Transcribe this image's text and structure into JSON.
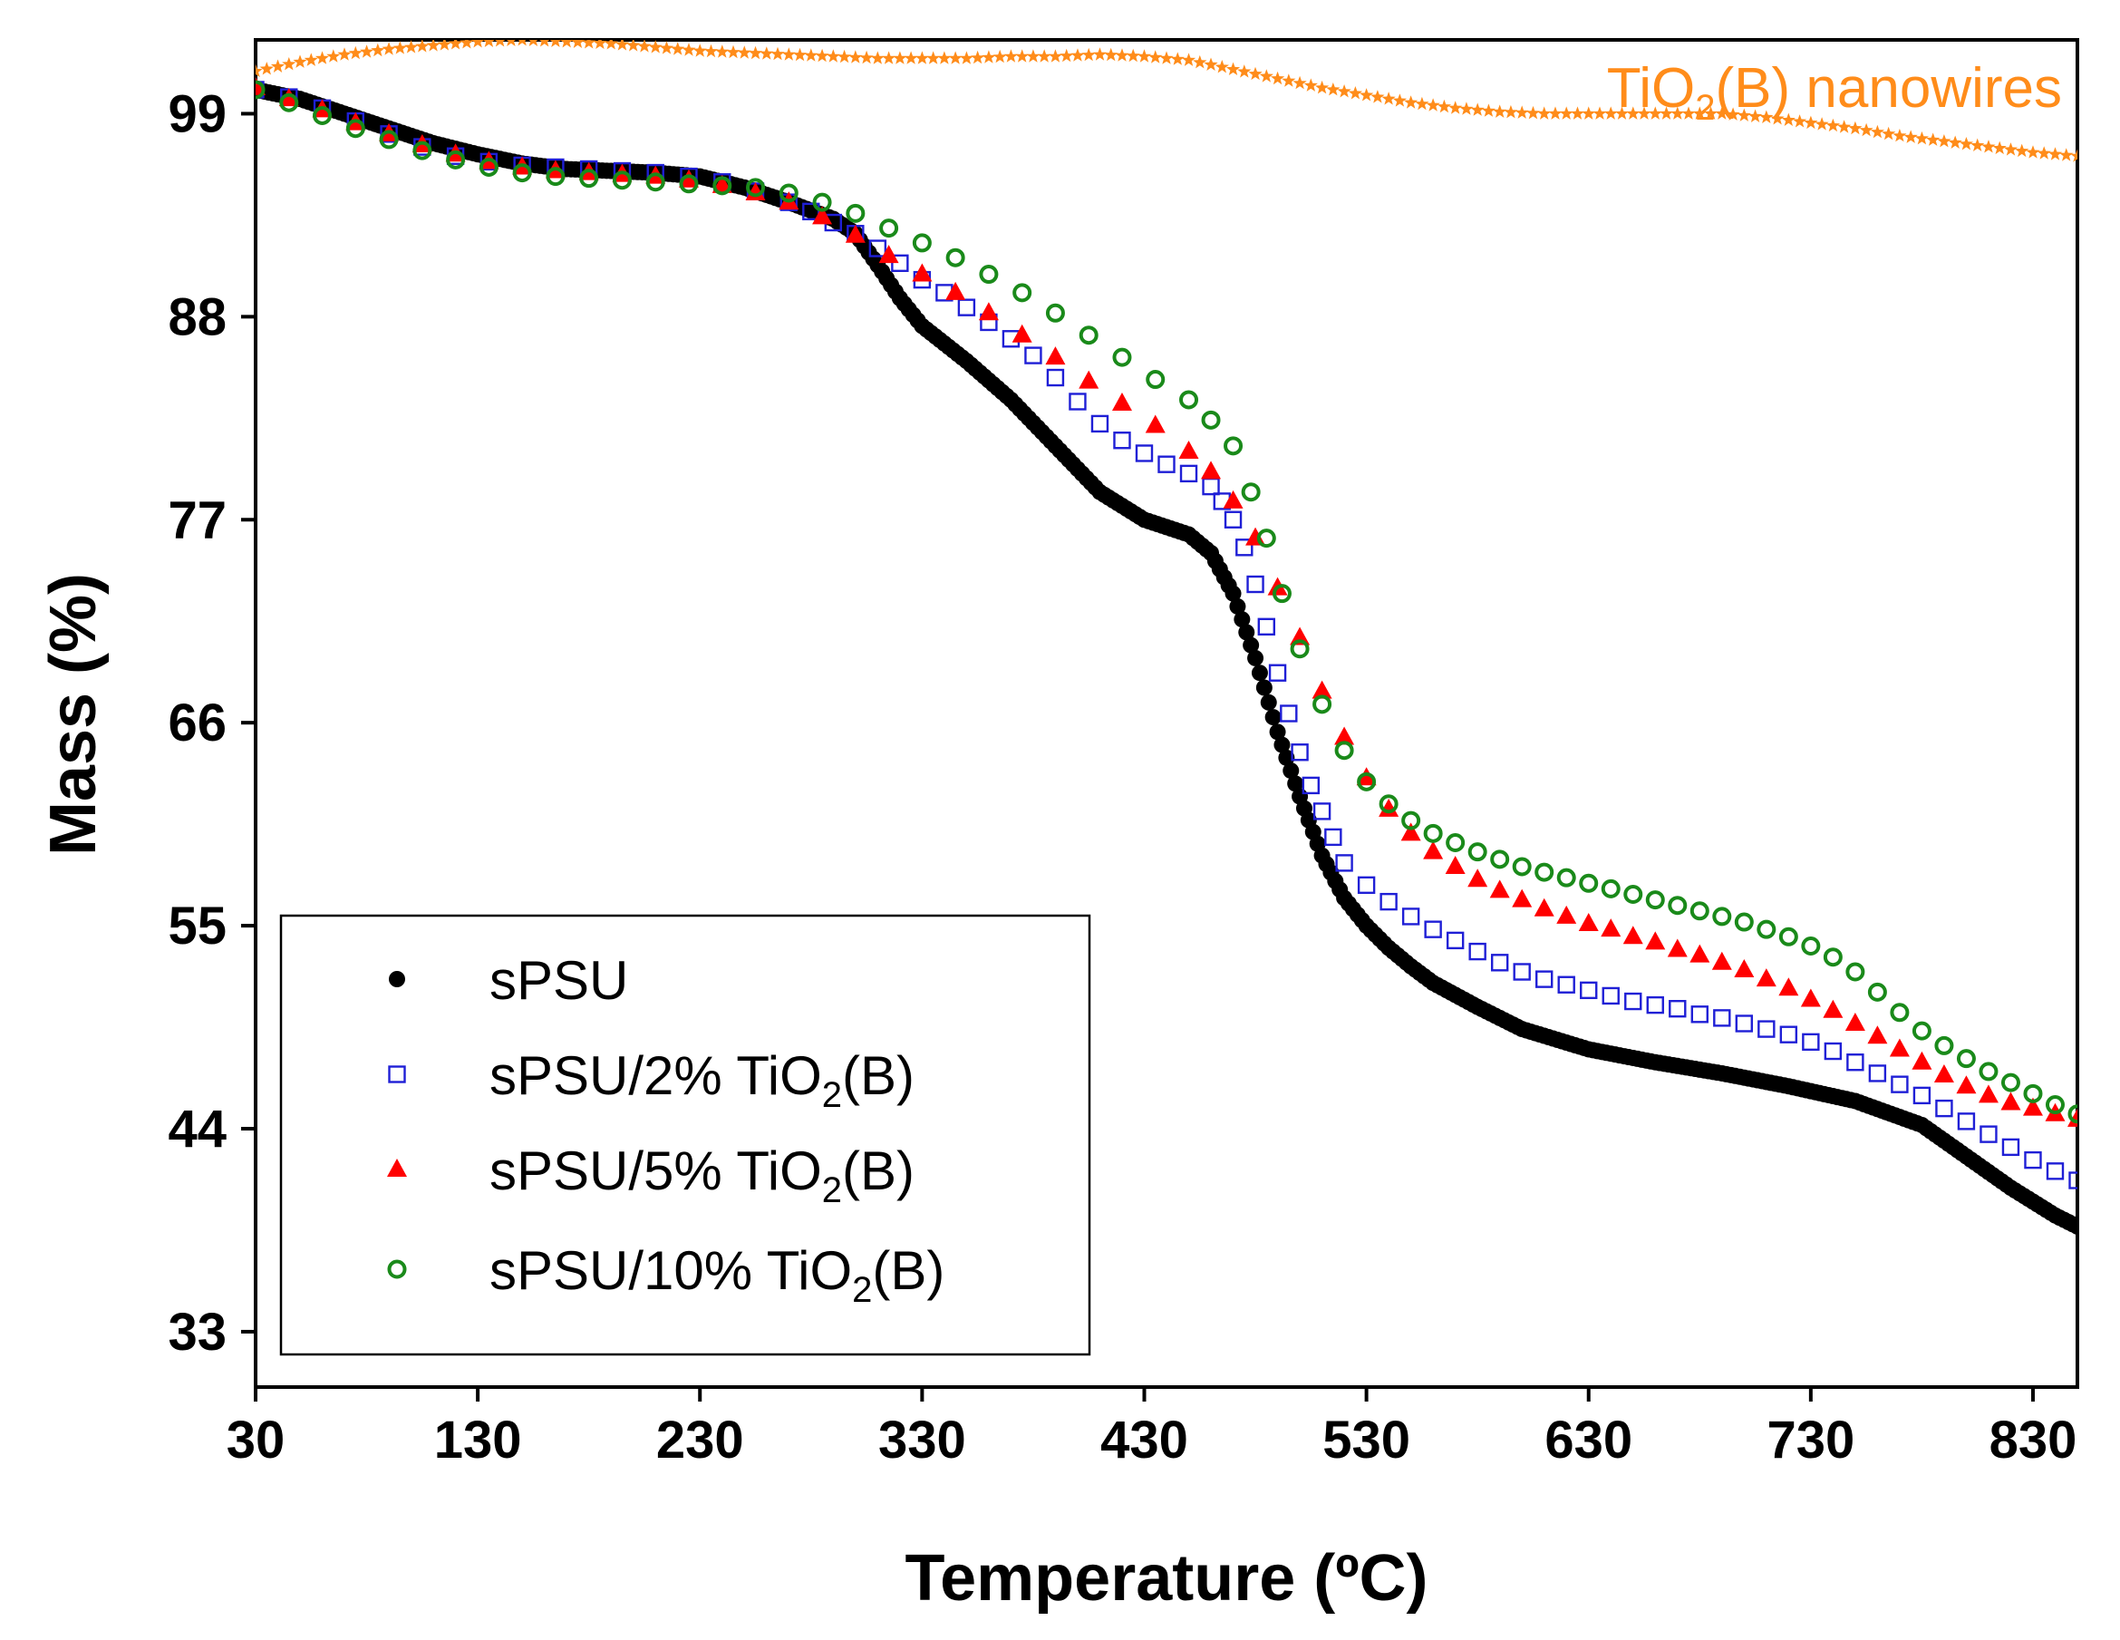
{
  "chart_data": {
    "type": "scatter",
    "title": "",
    "xlabel": "Temperature (ºC)",
    "ylabel": "Mass (%)",
    "xlim": [
      30,
      850
    ],
    "ylim": [
      30,
      103
    ],
    "xticks": [
      30,
      130,
      230,
      330,
      430,
      530,
      630,
      730,
      830
    ],
    "yticks": [
      33,
      44,
      55,
      66,
      77,
      88,
      99
    ],
    "legend_position": "bottom-left",
    "annotation": {
      "prefix": "TiO",
      "subscript": "2",
      "suffix": "(B) nanowires",
      "color": "#ff8c1a"
    },
    "series": [
      {
        "name": "sPSU",
        "legend": {
          "prefix": "sPSU",
          "subscript": "",
          "suffix": ""
        },
        "marker": "dot",
        "color": "#000000",
        "x": [
          30,
          50,
          70,
          90,
          110,
          130,
          150,
          170,
          190,
          210,
          230,
          250,
          270,
          290,
          300,
          310,
          320,
          330,
          350,
          370,
          390,
          410,
          430,
          450,
          460,
          470,
          480,
          490,
          500,
          510,
          520,
          530,
          540,
          550,
          560,
          580,
          600,
          630,
          660,
          690,
          720,
          750,
          780,
          800,
          820,
          840,
          850
        ],
        "y": [
          100.3,
          99.8,
          99.0,
          98.2,
          97.4,
          96.8,
          96.3,
          96.0,
          95.9,
          95.8,
          95.6,
          95.0,
          94.2,
          93.3,
          92.5,
          90.8,
          89.0,
          87.5,
          85.6,
          83.5,
          81.0,
          78.5,
          77.0,
          76.2,
          75.2,
          73.0,
          69.5,
          65.5,
          62.0,
          58.8,
          56.5,
          55.0,
          53.8,
          52.8,
          51.9,
          50.6,
          49.4,
          48.3,
          47.6,
          47.0,
          46.3,
          45.5,
          44.2,
          42.5,
          40.8,
          39.3,
          38.7
        ]
      },
      {
        "name": "sPSU/2% TiO2(B)",
        "legend": {
          "prefix": "sPSU/2% TiO",
          "subscript": "2",
          "suffix": "(B)"
        },
        "marker": "square",
        "color": "#1f1fd6",
        "x": [
          30,
          45,
          60,
          75,
          90,
          105,
          120,
          135,
          150,
          165,
          180,
          195,
          210,
          225,
          240,
          255,
          270,
          280,
          290,
          300,
          310,
          320,
          330,
          340,
          350,
          360,
          370,
          380,
          390,
          400,
          410,
          420,
          430,
          440,
          450,
          460,
          465,
          470,
          475,
          480,
          485,
          490,
          495,
          500,
          505,
          510,
          515,
          520,
          530,
          540,
          550,
          560,
          570,
          580,
          590,
          600,
          610,
          620,
          630,
          640,
          650,
          660,
          670,
          680,
          690,
          700,
          710,
          720,
          730,
          740,
          750,
          760,
          770,
          780,
          790,
          800,
          810,
          820,
          830,
          840,
          850
        ],
        "y": [
          100.3,
          99.9,
          99.3,
          98.6,
          97.9,
          97.2,
          96.7,
          96.4,
          96.2,
          96.1,
          96.0,
          95.9,
          95.8,
          95.6,
          95.3,
          94.8,
          94.2,
          93.7,
          93.1,
          92.5,
          91.7,
          90.9,
          90.0,
          89.3,
          88.5,
          87.7,
          86.8,
          85.9,
          84.7,
          83.4,
          82.2,
          81.3,
          80.6,
          80.0,
          79.5,
          78.8,
          78.0,
          77.0,
          75.5,
          73.5,
          71.2,
          68.7,
          66.5,
          64.4,
          62.6,
          61.2,
          59.8,
          58.4,
          57.2,
          56.3,
          55.5,
          54.8,
          54.2,
          53.6,
          53.0,
          52.5,
          52.1,
          51.8,
          51.5,
          51.2,
          50.9,
          50.7,
          50.5,
          50.2,
          50.0,
          49.7,
          49.4,
          49.1,
          48.7,
          48.2,
          47.6,
          47.0,
          46.4,
          45.8,
          45.1,
          44.4,
          43.7,
          43.0,
          42.3,
          41.7,
          41.2
        ]
      },
      {
        "name": "sPSU/5% TiO2(B)",
        "legend": {
          "prefix": "sPSU/5% TiO",
          "subscript": "2",
          "suffix": "(B)"
        },
        "marker": "triangle",
        "color": "#ff0000",
        "x": [
          30,
          45,
          60,
          75,
          90,
          105,
          120,
          135,
          150,
          165,
          180,
          195,
          210,
          225,
          240,
          255,
          270,
          285,
          300,
          315,
          330,
          345,
          360,
          375,
          390,
          405,
          420,
          435,
          450,
          460,
          470,
          480,
          490,
          500,
          510,
          520,
          530,
          540,
          550,
          560,
          570,
          580,
          590,
          600,
          610,
          620,
          630,
          640,
          650,
          660,
          670,
          680,
          690,
          700,
          710,
          720,
          730,
          740,
          750,
          760,
          770,
          780,
          790,
          800,
          810,
          820,
          830,
          840,
          850
        ],
        "y": [
          100.4,
          99.8,
          99.2,
          98.5,
          97.9,
          97.3,
          96.8,
          96.4,
          96.1,
          95.9,
          95.8,
          95.7,
          95.6,
          95.4,
          95.1,
          94.7,
          94.2,
          93.4,
          92.4,
          91.3,
          90.3,
          89.3,
          88.2,
          87.0,
          85.8,
          84.5,
          83.3,
          82.1,
          80.7,
          79.6,
          78.0,
          76.0,
          73.3,
          70.6,
          67.7,
          65.2,
          63.0,
          61.3,
          60.0,
          59.0,
          58.2,
          57.5,
          56.9,
          56.4,
          55.9,
          55.5,
          55.1,
          54.8,
          54.4,
          54.1,
          53.7,
          53.4,
          53.0,
          52.6,
          52.1,
          51.6,
          51.0,
          50.4,
          49.7,
          49.0,
          48.3,
          47.6,
          46.9,
          46.3,
          45.8,
          45.4,
          45.1,
          44.8,
          44.5
        ]
      },
      {
        "name": "sPSU/10% TiO2(B)",
        "legend": {
          "prefix": "sPSU/10% TiO",
          "subscript": "2",
          "suffix": "(B)"
        },
        "marker": "circle",
        "color": "#1a8a1a",
        "x": [
          30,
          45,
          60,
          75,
          90,
          105,
          120,
          135,
          150,
          165,
          180,
          195,
          210,
          225,
          240,
          255,
          270,
          285,
          300,
          315,
          330,
          345,
          360,
          375,
          390,
          405,
          420,
          435,
          450,
          460,
          470,
          478,
          485,
          492,
          500,
          510,
          520,
          530,
          540,
          550,
          560,
          570,
          580,
          590,
          600,
          610,
          620,
          630,
          640,
          650,
          660,
          670,
          680,
          690,
          700,
          710,
          720,
          730,
          740,
          750,
          760,
          770,
          780,
          790,
          800,
          810,
          820,
          830,
          840,
          850
        ],
        "y": [
          100.3,
          99.6,
          98.9,
          98.2,
          97.6,
          97.0,
          96.5,
          96.1,
          95.8,
          95.6,
          95.5,
          95.4,
          95.3,
          95.2,
          95.1,
          95.0,
          94.7,
          94.2,
          93.6,
          92.8,
          92.0,
          91.2,
          90.3,
          89.3,
          88.2,
          87.0,
          85.8,
          84.6,
          83.5,
          82.4,
          81.0,
          78.5,
          76.0,
          73.0,
          70.0,
          67.0,
          64.5,
          62.8,
          61.6,
          60.7,
          60.0,
          59.5,
          59.0,
          58.6,
          58.2,
          57.9,
          57.6,
          57.3,
          57.0,
          56.7,
          56.4,
          56.1,
          55.8,
          55.5,
          55.2,
          54.8,
          54.4,
          53.9,
          53.3,
          52.5,
          51.4,
          50.3,
          49.3,
          48.5,
          47.8,
          47.1,
          46.5,
          45.9,
          45.3,
          44.8
        ]
      },
      {
        "name": "TiO2(B) nanowires",
        "marker": "star",
        "color": "#ff8c1a",
        "x": [
          30,
          50,
          70,
          90,
          110,
          130,
          150,
          170,
          190,
          210,
          230,
          250,
          270,
          290,
          310,
          330,
          350,
          370,
          390,
          410,
          430,
          450,
          470,
          490,
          510,
          530,
          550,
          570,
          590,
          610,
          630,
          650,
          670,
          690,
          710,
          730,
          750,
          770,
          790,
          810,
          830,
          850
        ],
        "y": [
          101.3,
          101.8,
          102.2,
          102.5,
          102.7,
          102.9,
          103.0,
          102.9,
          102.8,
          102.6,
          102.4,
          102.3,
          102.2,
          102.1,
          102.0,
          102.0,
          102.0,
          102.1,
          102.1,
          102.2,
          102.1,
          101.9,
          101.4,
          100.9,
          100.4,
          100.0,
          99.6,
          99.3,
          99.1,
          99.0,
          99.0,
          99.0,
          99.0,
          99.0,
          98.8,
          98.5,
          98.2,
          97.8,
          97.5,
          97.2,
          96.9,
          96.7
        ]
      }
    ]
  }
}
